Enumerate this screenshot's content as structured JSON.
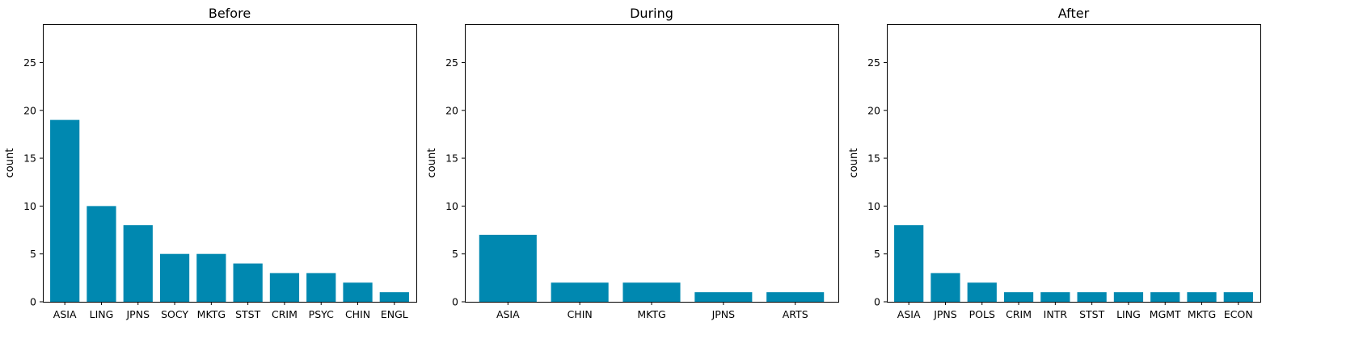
{
  "chart_data": [
    {
      "type": "bar",
      "title": "Before",
      "xlabel": "",
      "ylabel": "count",
      "ylim": [
        0,
        29
      ],
      "yticks": [
        0,
        5,
        10,
        15,
        20,
        25
      ],
      "categories": [
        "ASIA",
        "LING",
        "JPNS",
        "SOCY",
        "MKTG",
        "STST",
        "CRIM",
        "PSYC",
        "CHIN",
        "ENGL"
      ],
      "values": [
        19,
        10,
        8,
        5,
        5,
        4,
        3,
        3,
        2,
        1
      ],
      "color": "#0088b0"
    },
    {
      "type": "bar",
      "title": "During",
      "xlabel": "",
      "ylabel": "count",
      "ylim": [
        0,
        29
      ],
      "yticks": [
        0,
        5,
        10,
        15,
        20,
        25
      ],
      "categories": [
        "ASIA",
        "CHIN",
        "MKTG",
        "JPNS",
        "ARTS"
      ],
      "values": [
        7,
        2,
        2,
        1,
        1
      ],
      "color": "#0088b0"
    },
    {
      "type": "bar",
      "title": "After",
      "xlabel": "",
      "ylabel": "count",
      "ylim": [
        0,
        29
      ],
      "yticks": [
        0,
        5,
        10,
        15,
        20,
        25
      ],
      "categories": [
        "ASIA",
        "JPNS",
        "POLS",
        "CRIM",
        "INTR",
        "STST",
        "LING",
        "MGMT",
        "MKTG",
        "ECON"
      ],
      "values": [
        8,
        3,
        2,
        1,
        1,
        1,
        1,
        1,
        1,
        1
      ],
      "color": "#0088b0"
    }
  ]
}
